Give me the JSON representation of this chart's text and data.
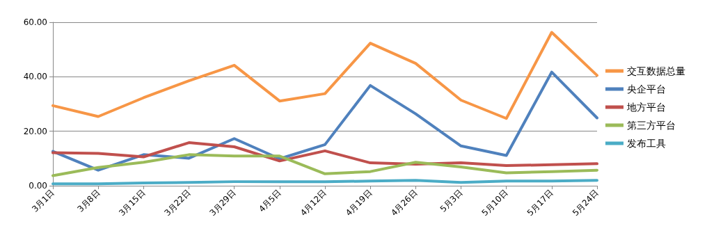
{
  "chart_data": {
    "type": "line",
    "categories": [
      "3月1日",
      "3月8日",
      "3月15日",
      "3月22日",
      "3月29日",
      "4月5日",
      "4月12日",
      "4月19日",
      "4月26日",
      "5月3日",
      "5月10日",
      "5月17日",
      "5月24日"
    ],
    "series": [
      {
        "name": "交互数据总量",
        "color": "#f79646",
        "values": [
          29.4,
          25.4,
          32.3,
          38.5,
          44.2,
          31.1,
          33.8,
          52.3,
          44.9,
          31.4,
          24.7,
          56.3,
          40.5
        ]
      },
      {
        "name": "央企平台",
        "color": "#4f81bd",
        "values": [
          12.6,
          5.7,
          11.4,
          10.1,
          17.3,
          9.9,
          15.1,
          36.8,
          26.4,
          14.6,
          11.1,
          41.7,
          24.9
        ]
      },
      {
        "name": "地方平台",
        "color": "#c0504d",
        "values": [
          12.1,
          11.9,
          10.6,
          15.8,
          14.3,
          9.1,
          12.8,
          8.4,
          7.9,
          8.4,
          7.4,
          7.7,
          8.1
        ]
      },
      {
        "name": "第三方平台",
        "color": "#9bbb59",
        "values": [
          3.7,
          6.7,
          8.6,
          11.4,
          10.9,
          10.9,
          4.4,
          5.2,
          8.6,
          6.9,
          4.7,
          5.2,
          5.7
        ]
      },
      {
        "name": "发布工具",
        "color": "#4bacc6",
        "values": [
          0.7,
          0.7,
          1.0,
          1.2,
          1.5,
          1.5,
          1.5,
          1.7,
          2.0,
          1.2,
          1.7,
          1.7,
          2.0
        ]
      }
    ],
    "ylim": [
      0,
      60
    ],
    "yticks": [
      {
        "value": 0,
        "label": "0.00"
      },
      {
        "value": 20,
        "label": "20.00"
      },
      {
        "value": 40,
        "label": "40.00"
      },
      {
        "value": 60,
        "label": "60.00"
      }
    ],
    "grid": "y",
    "legend": "right",
    "marker": "none",
    "line_style": "solid"
  }
}
